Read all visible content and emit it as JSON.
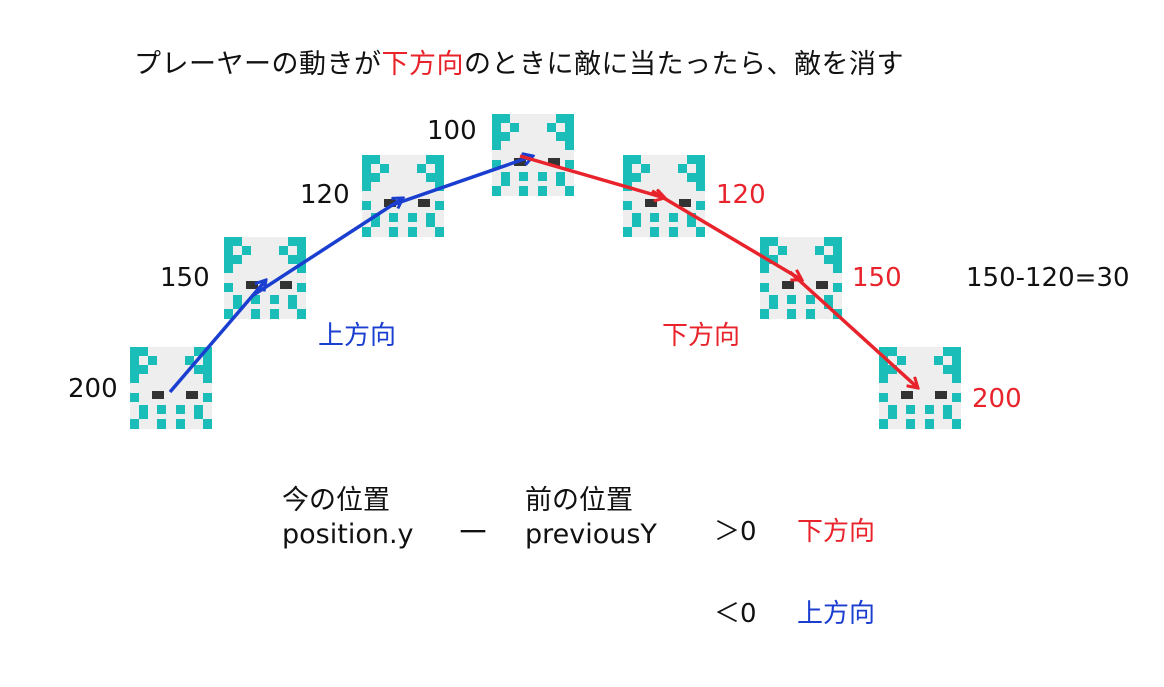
{
  "title": {
    "before": "プレーヤーの動きが",
    "highlight": "下方向",
    "after": "のときに敵に当たったら、敵を消す"
  },
  "colors": {
    "red": "#e8232b",
    "blue": "#1a3fd0",
    "teal": "#1bbdb8",
    "sprite_bg": "#eeeeee",
    "eye": "#333333"
  },
  "sprite_icon": "squid-enemy-icon",
  "left_labels": [
    "200",
    "150",
    "120",
    "100"
  ],
  "right_labels": [
    "120",
    "150",
    "200"
  ],
  "up_label": "上方向",
  "down_label": "下方向",
  "calc_note": "150-120=30",
  "formula": {
    "current_jp": "今の位置",
    "current_code": "position.y",
    "minus": "－",
    "previous_jp": "前の位置",
    "previous_code": "previousY",
    "gt": "＞0",
    "gt_result": "下方向",
    "lt": "＜0",
    "lt_result": "上方向"
  }
}
